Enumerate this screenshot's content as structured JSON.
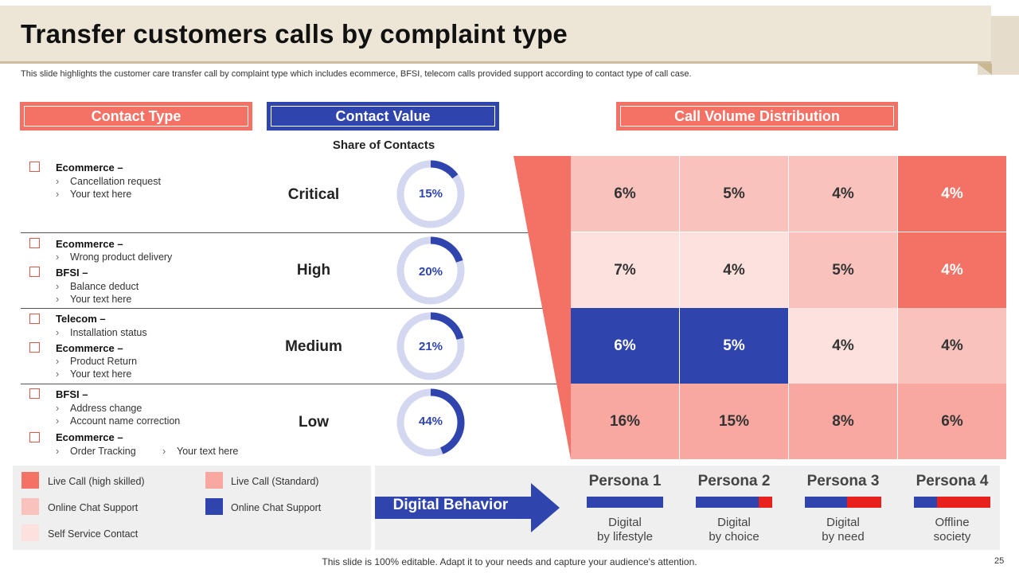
{
  "title": "Transfer customers calls by complaint type",
  "subtitle": "This slide highlights the customer care transfer call by complaint type which includes ecommerce, BFSI, telecom calls provided support according to contact type of call case.",
  "headers": {
    "contact_type": "Contact Type",
    "contact_value": "Contact Value",
    "distribution": "Call Volume Distribution"
  },
  "share_label": "Share of Contacts",
  "rows": [
    {
      "level": "Critical",
      "share": "15%",
      "share_value": 15,
      "groups": [
        {
          "category": "Ecommerce –",
          "items": [
            "Cancellation request",
            "Your text here"
          ]
        }
      ],
      "cells": [
        "6%",
        "5%",
        "4%",
        "4%"
      ],
      "cell_colors": [
        "#fac2bd",
        "#fac2bd",
        "#fac2bd",
        "#f47265"
      ]
    },
    {
      "level": "High",
      "share": "20%",
      "share_value": 20,
      "groups": [
        {
          "category": "Ecommerce –",
          "items": [
            "Wrong product delivery"
          ]
        },
        {
          "category": "BFSI –",
          "items": [
            "Balance deduct",
            "Your text here"
          ]
        }
      ],
      "cells": [
        "7%",
        "4%",
        "5%",
        "4%"
      ],
      "cell_colors": [
        "#fde1de",
        "#fde1de",
        "#fac2bd",
        "#f47265"
      ]
    },
    {
      "level": "Medium",
      "share": "21%",
      "share_value": 21,
      "groups": [
        {
          "category": "Telecom –",
          "items": [
            "Installation status"
          ]
        },
        {
          "category": "Ecommerce –",
          "items": [
            "Product Return",
            "Your text here"
          ]
        }
      ],
      "cells": [
        "6%",
        "5%",
        "4%",
        "4%"
      ],
      "cell_colors": [
        "#2f44ad",
        "#2f44ad",
        "#fde1de",
        "#fac2bd"
      ]
    },
    {
      "level": "Low",
      "share": "44%",
      "share_value": 44,
      "groups": [
        {
          "category": "BFSI –",
          "items": [
            "Address change",
            "Account name correction"
          ]
        },
        {
          "category": "Ecommerce –",
          "items": [
            "Order Tracking",
            "Your text here"
          ]
        }
      ],
      "cells": [
        "16%",
        "15%",
        "8%",
        "6%"
      ],
      "cell_colors": [
        "#f9a8a1",
        "#f9a8a1",
        "#f9a8a1",
        "#f9a8a1"
      ]
    }
  ],
  "legend": [
    {
      "label": "Live Call (high skilled)",
      "color": "#f47265"
    },
    {
      "label": "Online Chat Support",
      "color": "#fac2bd"
    },
    {
      "label": "Self Service Contact",
      "color": "#fde1de"
    },
    {
      "label": "Live Call (Standard)",
      "color": "#f9a8a1"
    },
    {
      "label": "Online Chat Support",
      "color": "#2f44ad"
    }
  ],
  "digital_behavior": "Digital Behavior",
  "personas": [
    {
      "name": "Persona 1",
      "desc1": "Digital",
      "desc2": "by lifestyle",
      "blue_fraction": 1.0
    },
    {
      "name": "Persona 2",
      "desc1": "Digital",
      "desc2": "by choice",
      "blue_fraction": 0.82
    },
    {
      "name": "Persona 3",
      "desc1": "Digital",
      "desc2": "by need",
      "blue_fraction": 0.55
    },
    {
      "name": "Persona 4",
      "desc1": "Offline",
      "desc2": "society",
      "blue_fraction": 0.3
    }
  ],
  "colors": {
    "accent_red": "#f47265",
    "accent_blue": "#2f44ad",
    "persona_red": "#e8211c",
    "donut_track": "#d3d8f0"
  },
  "footer": "This slide is 100% editable. Adapt it to your needs and capture your audience's attention.",
  "page_number": "25"
}
